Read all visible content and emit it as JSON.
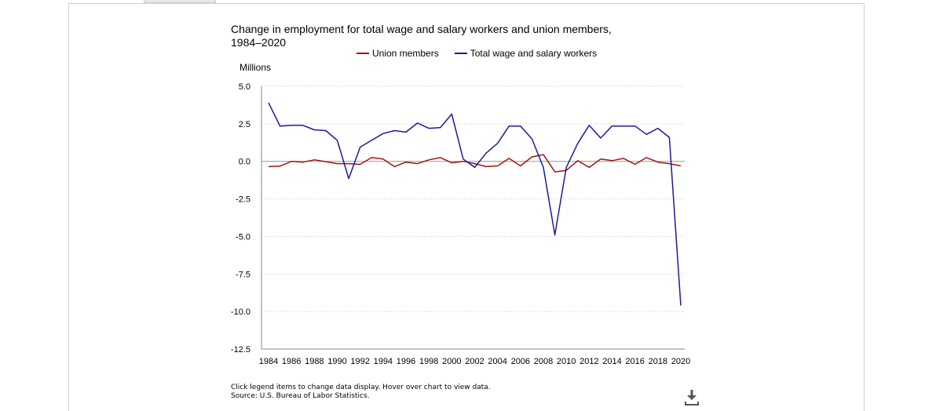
{
  "chart_data": {
    "type": "line",
    "title": "Change in employment for total wage and salary workers and union members, 1984–2020",
    "ylabel": "Millions",
    "xlabel": "",
    "ylim": [
      -12.5,
      5.0
    ],
    "yticks": [
      "5.0",
      "2.5",
      "0.0",
      "-2.5",
      "-5.0",
      "-7.5",
      "-10.0",
      "-12.5"
    ],
    "ytick_values": [
      5.0,
      2.5,
      0.0,
      -2.5,
      -5.0,
      -7.5,
      -10.0,
      -12.5
    ],
    "xtick_labels": [
      "1984",
      "1986",
      "1988",
      "1990",
      "1992",
      "1994",
      "1996",
      "1998",
      "2000",
      "2002",
      "2004",
      "2006",
      "2008",
      "2010",
      "2012",
      "2014",
      "2016",
      "2018",
      "2020"
    ],
    "x": [
      1984,
      1985,
      1986,
      1987,
      1988,
      1989,
      1990,
      1991,
      1992,
      1993,
      1994,
      1995,
      1996,
      1997,
      1998,
      1999,
      2000,
      2001,
      2002,
      2003,
      2004,
      2005,
      2006,
      2007,
      2008,
      2009,
      2010,
      2011,
      2012,
      2013,
      2014,
      2015,
      2016,
      2017,
      2018,
      2019,
      2020
    ],
    "grid": "horizontal dotted",
    "legend_position": "top",
    "series": [
      {
        "name": "Union members",
        "color": "#a31515",
        "values": [
          -0.35,
          -0.32,
          0.0,
          -0.05,
          0.1,
          -0.02,
          -0.15,
          -0.15,
          -0.2,
          0.25,
          0.15,
          -0.35,
          -0.05,
          -0.15,
          0.1,
          0.25,
          -0.1,
          0.0,
          -0.15,
          -0.35,
          -0.3,
          0.2,
          -0.3,
          0.3,
          0.45,
          -0.7,
          -0.6,
          0.05,
          -0.4,
          0.15,
          0.05,
          0.2,
          -0.2,
          0.25,
          -0.05,
          -0.15,
          -0.3
        ]
      },
      {
        "name": "Total wage and salary workers",
        "color": "#1a1aa0",
        "values": [
          3.9,
          2.35,
          2.4,
          2.4,
          2.1,
          2.05,
          1.4,
          -1.15,
          0.95,
          1.4,
          1.85,
          2.05,
          1.95,
          2.55,
          2.2,
          2.25,
          3.15,
          0.15,
          -0.4,
          0.55,
          1.2,
          2.35,
          2.35,
          1.5,
          -0.4,
          -4.9,
          -0.4,
          1.2,
          2.4,
          1.55,
          2.35,
          2.35,
          2.35,
          1.8,
          2.2,
          1.6,
          -9.6
        ]
      }
    ]
  },
  "footnote": {
    "line1": "Click legend items to change data display. Hover over chart to view data.",
    "line2": "Source: U.S. Bureau of Labor Statistics."
  },
  "icons": {
    "download": "download-icon"
  }
}
